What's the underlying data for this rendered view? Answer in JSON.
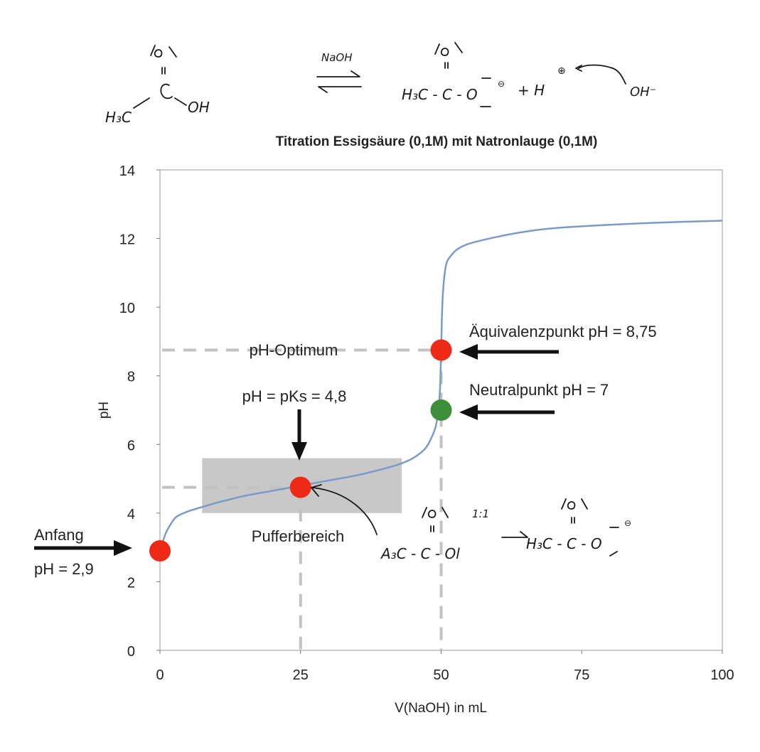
{
  "chart_data": {
    "type": "line",
    "title": "Titration Essigsäure (0,1M) mit Natronlauge (0,1M)",
    "xlabel": "V(NaOH) in mL",
    "ylabel": "pH",
    "xlim": [
      0,
      100
    ],
    "ylim": [
      0,
      14
    ],
    "xticks": [
      "0",
      "25",
      "50",
      "75",
      "100"
    ],
    "yticks": [
      "0",
      "2",
      "4",
      "6",
      "8",
      "10",
      "12",
      "14"
    ],
    "grid": false,
    "series": [
      {
        "x": [
          0,
          1,
          2,
          3,
          5,
          8,
          10,
          12.5,
          15,
          20,
          25,
          30,
          35,
          40,
          43,
          45,
          47,
          48,
          49,
          49.5,
          49.8,
          50,
          50.2,
          50.5,
          51,
          52,
          53,
          55,
          60,
          65,
          70,
          80,
          90,
          100
        ],
        "y": [
          2.9,
          3.4,
          3.7,
          3.9,
          4.05,
          4.2,
          4.3,
          4.4,
          4.5,
          4.65,
          4.8,
          4.95,
          5.1,
          5.3,
          5.45,
          5.6,
          5.85,
          6.1,
          6.5,
          7.0,
          7.6,
          8.75,
          10.0,
          10.8,
          11.3,
          11.55,
          11.7,
          11.85,
          12.05,
          12.2,
          12.3,
          12.4,
          12.47,
          12.52
        ],
        "color": "#7a9bc7"
      }
    ],
    "points": [
      {
        "x": 0,
        "y": 2.9,
        "color": "#ee2a16"
      },
      {
        "x": 25,
        "y": 4.75,
        "color": "#ee2a16"
      },
      {
        "x": 50,
        "y": 8.75,
        "color": "#ee2a16"
      },
      {
        "x": 50,
        "y": 7,
        "color": "#3d8f3a"
      }
    ],
    "buffer_region": {
      "x": [
        7.5,
        43
      ],
      "y": [
        4.0,
        5.6
      ],
      "color": "#c8c8c8"
    },
    "reference_lines": [
      {
        "orientation": "horizontal",
        "y": 8.75,
        "x_end": 50
      },
      {
        "orientation": "horizontal",
        "y": 4.75,
        "x_end": 25
      },
      {
        "orientation": "vertical",
        "x": 25,
        "y_end": 4.75
      },
      {
        "orientation": "vertical",
        "x": 50,
        "y_end": 8.75
      }
    ],
    "annotations": {
      "start_label": "Anfang",
      "start_value": "pH = 2,9",
      "pks": "pH = pKs = 4,8",
      "buffer": "Pufferbereich",
      "optimum": "pH-Optimum",
      "equivalence": "Äquivalenzpunkt pH = 8,75",
      "neutral": "Neutralpunkt  pH = 7"
    }
  },
  "handwriting": {
    "reagent": "NaOH",
    "ratio": "1:1",
    "hydroxide": "OH⁻"
  }
}
